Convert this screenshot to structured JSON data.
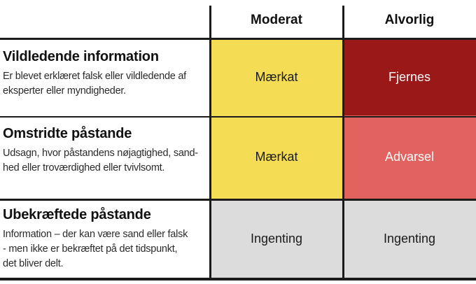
{
  "table": {
    "columns": [
      {
        "label": "Moderat"
      },
      {
        "label": "Alvorlig"
      }
    ],
    "rows": [
      {
        "title": "Vildledende information",
        "description_lines": [
          "Er blevet erklæret falsk eller vildledende af",
          "eksperter eller myndigheder."
        ],
        "cells": [
          {
            "label": "Mærkat",
            "bg": "#F5DC55",
            "fg": "#1a1a1a"
          },
          {
            "label": "Fjernes",
            "bg": "#9A1818",
            "fg": "#ffffff"
          }
        ]
      },
      {
        "title": "Omstridte påstande",
        "description_lines": [
          "Udsagn, hvor påstandens nøjagtighed, sand-",
          "hed eller troværdighed eller tvivlsomt."
        ],
        "cells": [
          {
            "label": "Mærkat",
            "bg": "#F5DC55",
            "fg": "#1a1a1a"
          },
          {
            "label": "Advarsel",
            "bg": "#E2625F",
            "fg": "#ffffff"
          }
        ]
      },
      {
        "title": "Ubekræftede påstande",
        "description_lines": [
          "Information – der kan være sand eller falsk",
          "- men ikke er bekræftet på det tidspunkt,",
          "det bliver delt."
        ],
        "cells": [
          {
            "label": "Ingenting",
            "bg": "#DCDCDC",
            "fg": "#1a1a1a"
          },
          {
            "label": "Ingenting",
            "bg": "#DCDCDC",
            "fg": "#1a1a1a"
          }
        ]
      }
    ],
    "grid_line_color": "#1B1B1B"
  }
}
